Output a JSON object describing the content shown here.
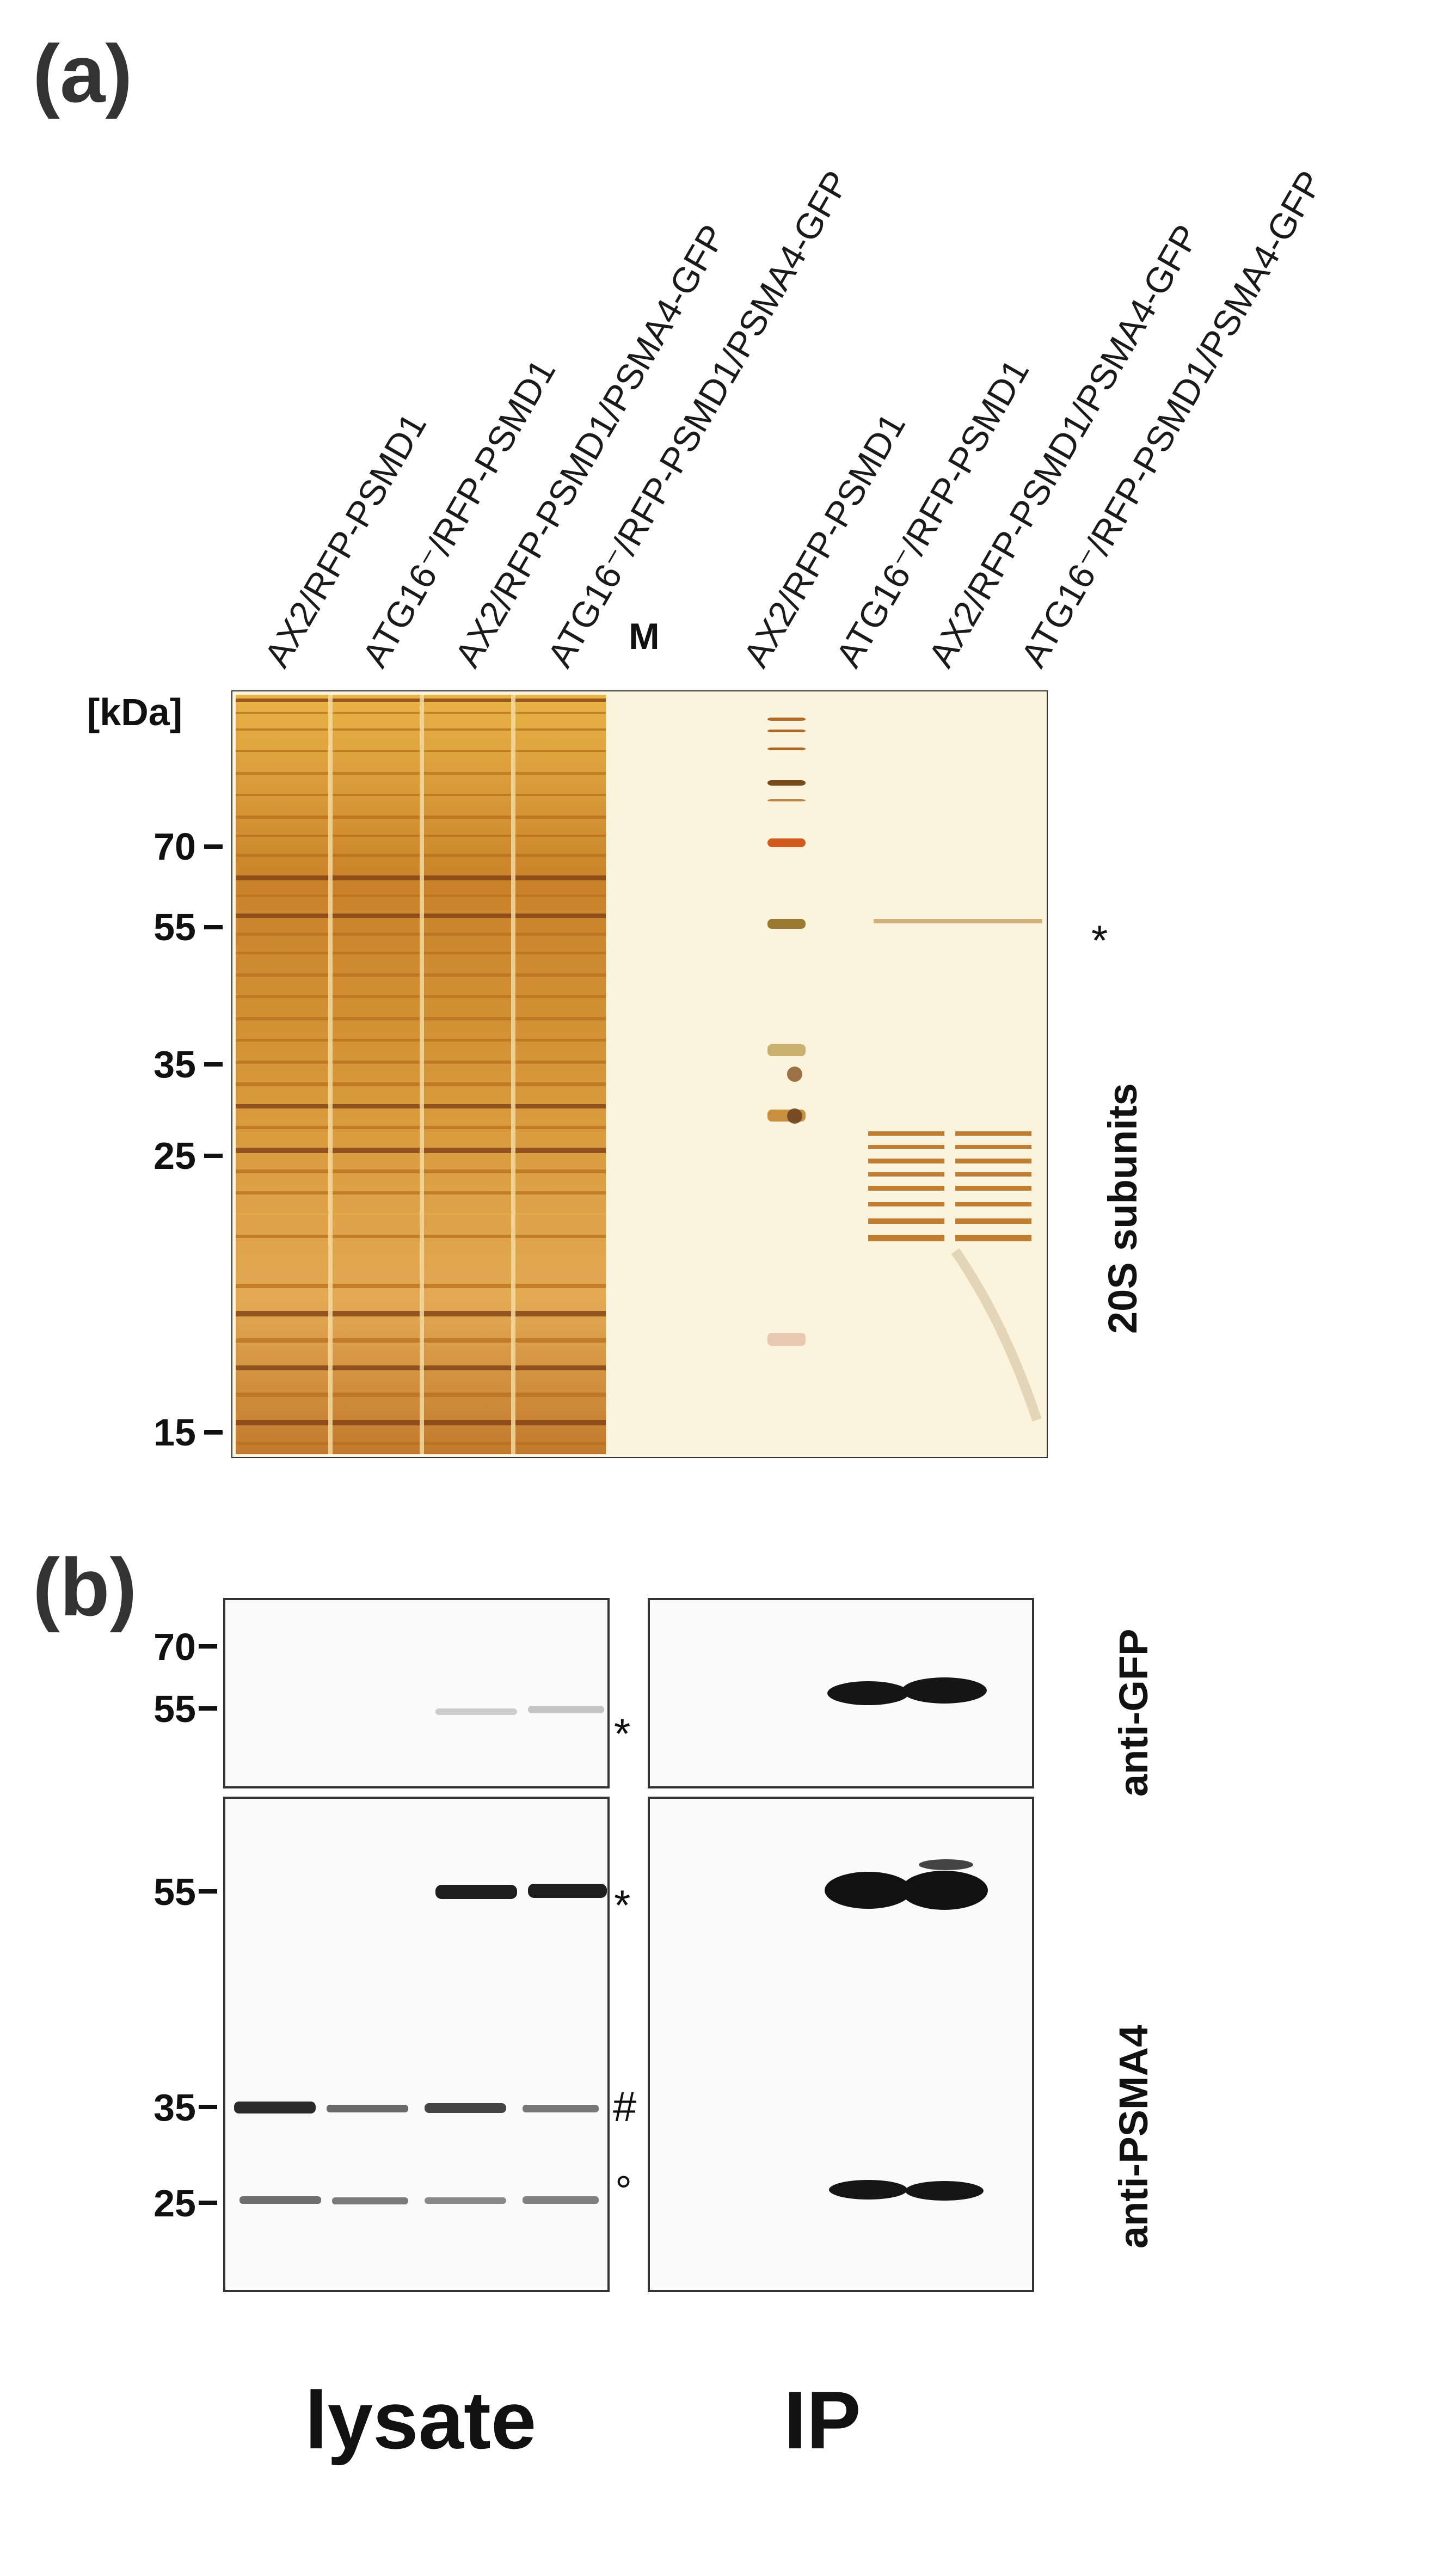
{
  "panel_a": {
    "label": "(a)",
    "lane_labels": [
      "AX2/RFP-PSMD1",
      "ATG16⁻/RFP-PSMD1",
      "AX2/RFP-PSMD1/PSMA4-GFP",
      "ATG16⁻/RFP-PSMD1/PSMA4-GFP",
      "M",
      "AX2/RFP-PSMD1",
      "ATG16⁻/RFP-PSMD1",
      "AX2/RFP-PSMD1/PSMA4-GFP",
      "ATG16⁻/RFP-PSMD1/PSMA4-GFP"
    ],
    "kda_header": "[kDa]",
    "markers": [
      "70",
      "55",
      "35",
      "25",
      "15"
    ],
    "star": "*",
    "side_label": "20S subunits"
  },
  "panel_b": {
    "label": "(b)",
    "top_markers": [
      "70",
      "55"
    ],
    "bottom_markers": [
      "55",
      "35",
      "25"
    ],
    "top_annotations": [
      "*"
    ],
    "bottom_annotations": [
      "*",
      "#",
      "°"
    ],
    "top_antibody": "anti-GFP",
    "bottom_antibody": "anti-PSMA4",
    "lysate_label": "lysate",
    "ip_label": "IP"
  },
  "colors": {
    "gel_bg": "#fbf3dc",
    "band_dark": "#7a3a12",
    "band_mid": "#b8701e",
    "band_light": "#e0a94a",
    "blot_band": "#111111"
  }
}
